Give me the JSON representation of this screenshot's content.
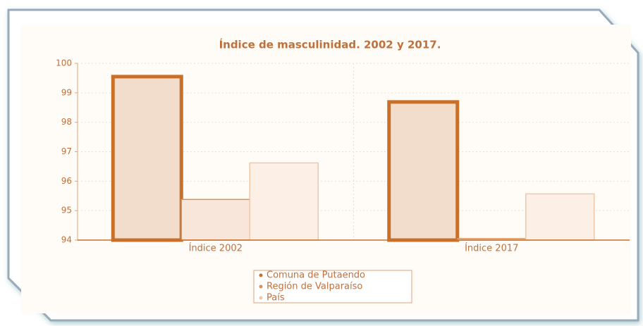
{
  "chart_data": {
    "type": "bar",
    "title": "Índice de masculinidad. 2002 y 2017.",
    "categories": [
      "Índice 2002",
      "Índice 2017"
    ],
    "series": [
      {
        "name": "Comuna de Putaendo",
        "color": "#c8702a",
        "values": [
          99.55,
          98.69
        ]
      },
      {
        "name": "Región de Valparaíso",
        "color": "#d9925a",
        "values": [
          95.38,
          94.05
        ]
      },
      {
        "name": "País",
        "color": "#f0c8a8",
        "values": [
          96.62,
          95.57
        ]
      }
    ],
    "ylim": [
      94,
      100
    ],
    "yticks": [
      94,
      95,
      96,
      97,
      98,
      99,
      100
    ],
    "grid": true
  }
}
